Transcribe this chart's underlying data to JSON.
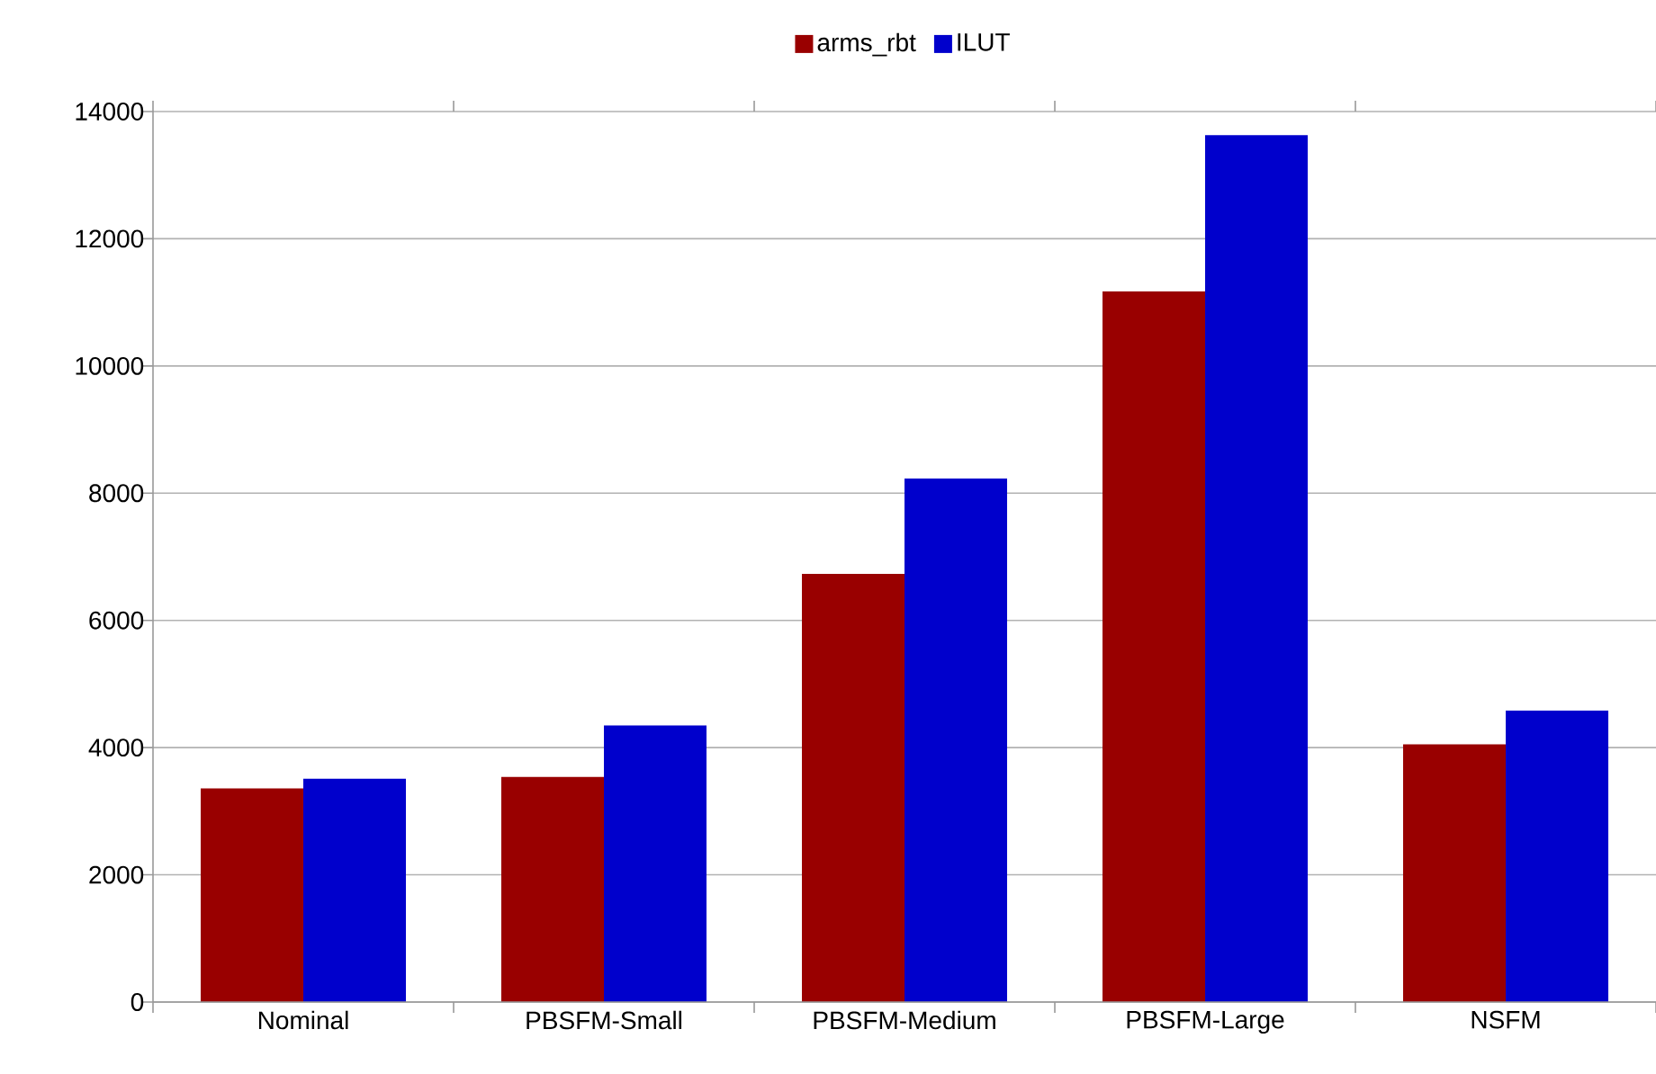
{
  "chart_data": {
    "type": "bar",
    "categories": [
      "Nominal",
      "PBSFM-Small",
      "PBSFM-Medium",
      "PBSFM-Large",
      "NSFM"
    ],
    "series": [
      {
        "name": "arms_rbt",
        "color": "#990000",
        "values": [
          3360,
          3540,
          6730,
          11170,
          4050
        ]
      },
      {
        "name": "ILUT",
        "color": "#0000cc",
        "values": [
          3510,
          4350,
          8230,
          13630,
          4580
        ]
      }
    ],
    "ylim": [
      0,
      14000
    ],
    "yticks": [
      0,
      2000,
      4000,
      6000,
      8000,
      10000,
      12000,
      14000
    ],
    "grid": "y",
    "legend": "top"
  }
}
